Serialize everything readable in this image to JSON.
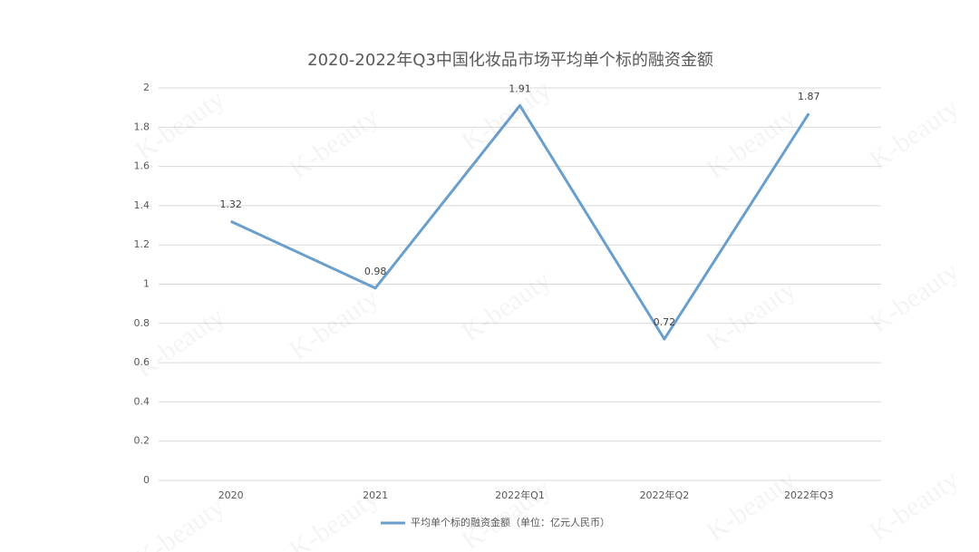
{
  "chart_data": {
    "type": "line",
    "title": "2020-2022年Q3中国化妆品市场平均单个标的融资金额",
    "categories": [
      "2020",
      "2021",
      "2022年Q1",
      "2022年Q2",
      "2022年Q3"
    ],
    "series": [
      {
        "name": "平均单个标的融资金额（单位：亿元人民币）",
        "color": "#6a9fcb",
        "values": [
          1.32,
          0.98,
          1.91,
          0.72,
          1.87
        ]
      }
    ],
    "ylim": [
      0,
      2
    ],
    "yticks": [
      0,
      0.2,
      0.4,
      0.6,
      0.8,
      1,
      1.2,
      1.4,
      1.6,
      1.8,
      2
    ],
    "grid": true,
    "data_labels": true,
    "legend": "bottom",
    "watermark": "K-beauty"
  }
}
